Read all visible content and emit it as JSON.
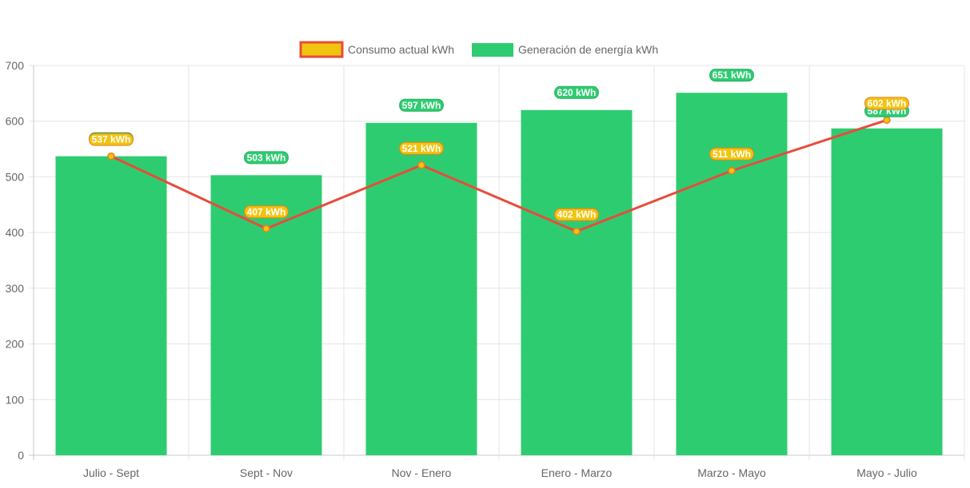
{
  "chart_data": {
    "type": "bar",
    "categories": [
      "Julio - Sept",
      "Sept - Nov",
      "Nov - Enero",
      "Enero - Marzo",
      "Marzo - Mayo",
      "Mayo - Julio"
    ],
    "series": [
      {
        "name": "Consumo actual kWh",
        "type": "line",
        "values": [
          537,
          407,
          521,
          402,
          511,
          602
        ],
        "labels": [
          "537 kWh",
          "407 kWh",
          "521 kWh",
          "402 kWh",
          "511 kWh",
          "602 kWh"
        ],
        "color": "#e74c3c",
        "fill_color": "#f1c40f"
      },
      {
        "name": "Generación de energía kWh",
        "type": "bar",
        "values": [
          537,
          503,
          597,
          620,
          651,
          587
        ],
        "labels": [
          "537 kWh",
          "503 kWh",
          "597 kWh",
          "620 kWh",
          "651 kWh",
          "587 kWh"
        ],
        "color": "#2ecc71"
      }
    ],
    "ylim": [
      0,
      700
    ],
    "yticks": [
      "0",
      "100",
      "200",
      "300",
      "400",
      "500",
      "600",
      "700"
    ],
    "title": "",
    "xlabel": "",
    "ylabel": "",
    "legend_position": "top",
    "grid": true
  }
}
